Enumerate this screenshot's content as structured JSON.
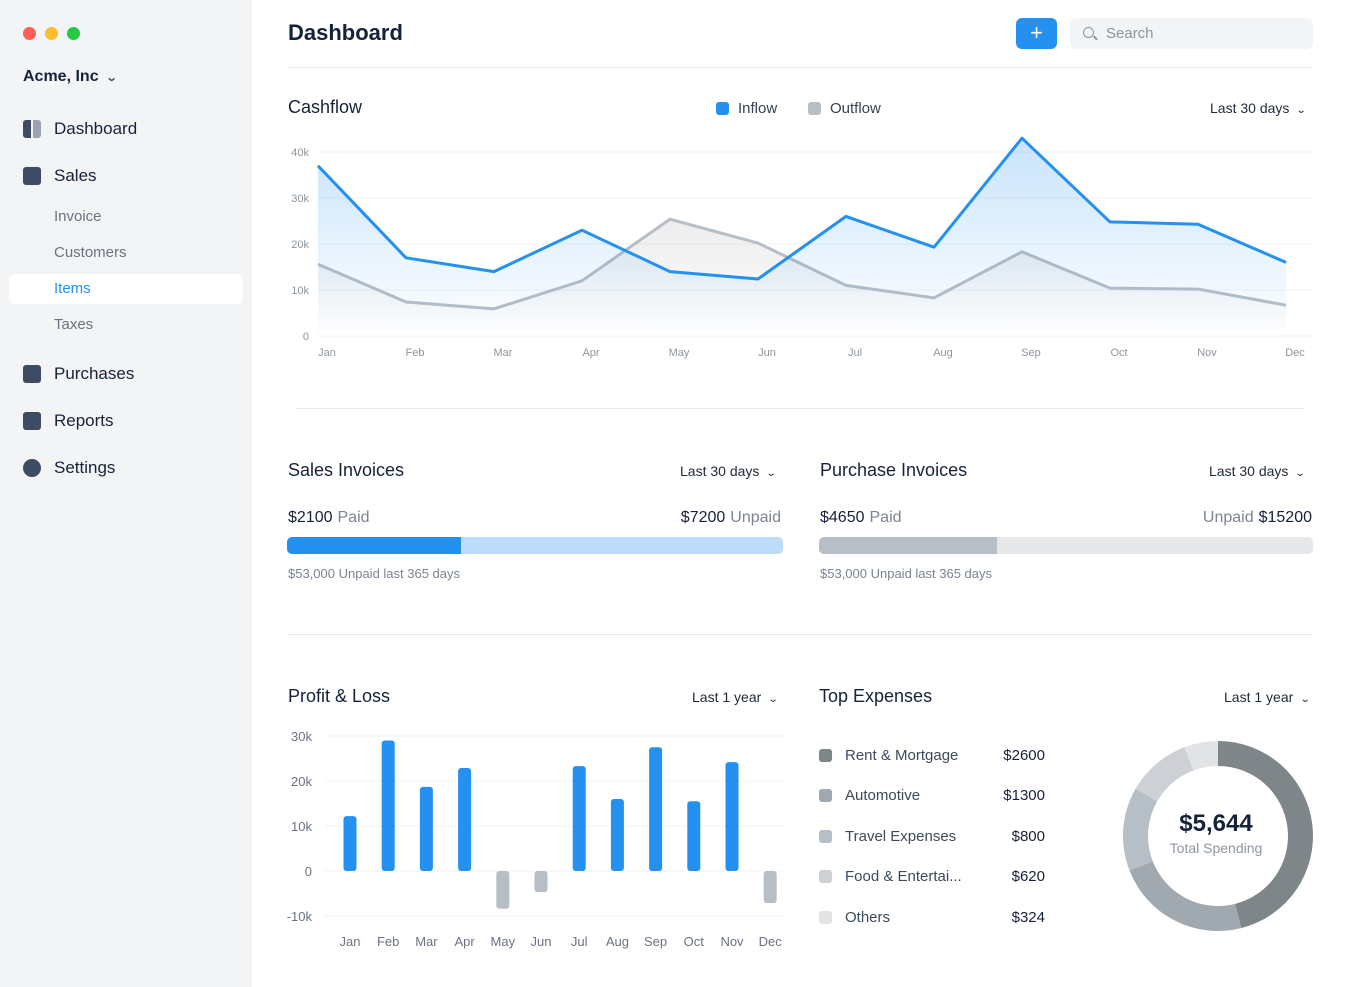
{
  "sidebar": {
    "company": "Acme, Inc",
    "items": [
      {
        "label": "Dashboard",
        "icon": "dashboard-icon"
      },
      {
        "label": "Sales",
        "icon": "sales-icon"
      },
      {
        "label": "Purchases",
        "icon": "purchases-icon"
      },
      {
        "label": "Reports",
        "icon": "reports-icon"
      },
      {
        "label": "Settings",
        "icon": "settings-icon"
      }
    ],
    "sales_sub": [
      {
        "label": "Invoice"
      },
      {
        "label": "Customers"
      },
      {
        "label": "Items",
        "active": true
      },
      {
        "label": "Taxes"
      }
    ]
  },
  "header": {
    "title": "Dashboard",
    "add_label": "+",
    "search_placeholder": "Search"
  },
  "cashflow": {
    "title": "Cashflow",
    "range": "Last 30 days",
    "legend": [
      "Inflow",
      "Outflow"
    ]
  },
  "sales_invoices": {
    "title": "Sales Invoices",
    "range": "Last 30 days",
    "paid": "$2100",
    "paid_label": "Paid",
    "unpaid": "$7200",
    "unpaid_label": "Unpaid",
    "paid_fraction": 0.35,
    "note": "$53,000 Unpaid last 365 days"
  },
  "purchase_invoices": {
    "title": "Purchase Invoices",
    "range": "Last 30 days",
    "paid": "$4650",
    "paid_label": "Paid",
    "unpaid": "$15200",
    "unpaid_label": "Unpaid",
    "paid_fraction": 0.36,
    "note": "$53,000 Unpaid last 365 days"
  },
  "profit_loss": {
    "title": "Profit & Loss",
    "range": "Last 1 year"
  },
  "top_expenses": {
    "title": "Top Expenses",
    "range": "Last 1 year",
    "total": "$5,644",
    "total_label": "Total Spending",
    "items": [
      {
        "label": "Rent & Mortgage",
        "value": "$2600",
        "color": "#7f8689"
      },
      {
        "label": "Automotive",
        "value": "$1300",
        "color": "#a0a8b0"
      },
      {
        "label": "Travel Expenses",
        "value": "$800",
        "color": "#b6bec6"
      },
      {
        "label": "Food & Entertai...",
        "value": "$620",
        "color": "#cdd1d5"
      },
      {
        "label": "Others",
        "value": "$324",
        "color": "#e1e3e5"
      }
    ]
  },
  "colors": {
    "accent": "#2490ef",
    "outflow": "#b8bec5",
    "negative": "#b8bec5"
  },
  "chart_data": [
    {
      "type": "line",
      "title": "Cashflow",
      "categories": [
        "Jan",
        "Feb",
        "Mar",
        "Apr",
        "May",
        "Jun",
        "Jul",
        "Aug",
        "Sep",
        "Oct",
        "Nov",
        "Dec"
      ],
      "yticks": [
        "0",
        "10k",
        "20k",
        "30k",
        "40k"
      ],
      "ylim": [
        0,
        40000
      ],
      "grid": true,
      "legend": "top",
      "series": [
        {
          "name": "Inflow",
          "values": [
            37000,
            17000,
            14000,
            23000,
            14000,
            12400,
            26000,
            19300,
            43000,
            24800,
            24300,
            16000
          ]
        },
        {
          "name": "Outflow",
          "values": [
            15600,
            7400,
            5900,
            12000,
            25400,
            20200,
            11000,
            8300,
            18300,
            10400,
            10200,
            6700
          ]
        }
      ]
    },
    {
      "type": "bar",
      "title": "Profit & Loss",
      "categories": [
        "Jan",
        "Feb",
        "Mar",
        "Apr",
        "May",
        "Jun",
        "Jul",
        "Aug",
        "Sep",
        "Oct",
        "Nov",
        "Dec"
      ],
      "yticks": [
        "-10k",
        "0",
        "10k",
        "20k",
        "30k"
      ],
      "ylim": [
        -10000,
        30000
      ],
      "grid": true,
      "values": [
        12200,
        29000,
        18700,
        22900,
        -8400,
        -4700,
        23300,
        16000,
        27500,
        15500,
        24200,
        -7100
      ]
    },
    {
      "type": "pie",
      "title": "Top Expenses",
      "categories": [
        "Rent & Mortgage",
        "Automotive",
        "Travel Expenses",
        "Food & Entertai...",
        "Others"
      ],
      "values": [
        2600,
        1300,
        800,
        620,
        324
      ]
    }
  ]
}
